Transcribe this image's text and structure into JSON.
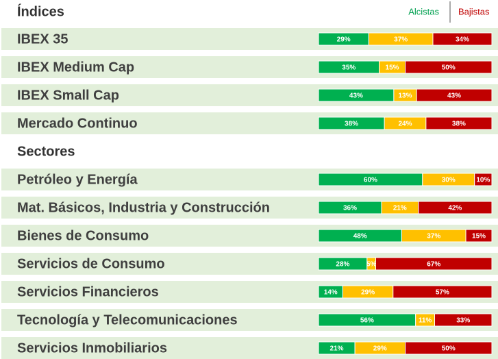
{
  "chart_data": [
    {
      "type": "bar",
      "title": "Índices",
      "categories": [
        "IBEX 35",
        "IBEX Medium Cap",
        "IBEX Small Cap",
        "Mercado Continuo"
      ],
      "series": [
        {
          "name": "Alcistas",
          "color": "#00b050",
          "values": [
            29,
            35,
            43,
            38
          ],
          "value_labels": [
            "29%",
            "35%",
            "43%",
            "38%"
          ]
        },
        {
          "color": "#ffc000",
          "values": [
            37,
            15,
            13,
            24
          ],
          "value_labels": [
            "37%",
            "15%",
            "13%",
            "24%"
          ]
        },
        {
          "name": "Bajistas",
          "color": "#c00000",
          "values": [
            34,
            50,
            43,
            38
          ],
          "value_labels": [
            "34%",
            "50%",
            "43%",
            "38%"
          ]
        }
      ]
    },
    {
      "type": "bar",
      "title": "Sectores",
      "categories": [
        "Petróleo y Energía",
        "Mat. Básicos, Industria y Construcción",
        "Bienes de Consumo",
        "Servicios de Consumo",
        "Servicios Financieros",
        "Tecnología y Telecomunicaciones",
        "Servicios Inmobiliarios"
      ],
      "series": [
        {
          "color": "#00b050",
          "values": [
            60,
            36,
            48,
            28,
            14,
            56,
            21
          ],
          "value_labels": [
            "60%",
            "36%",
            "48%",
            "28%",
            "14%",
            "56%",
            "21%"
          ]
        },
        {
          "color": "#ffc000",
          "values": [
            30,
            21,
            37,
            5,
            29,
            11,
            29
          ],
          "value_labels": [
            "30%",
            "21%",
            "37%",
            "5%",
            "29%",
            "11%",
            "29%"
          ]
        },
        {
          "color": "#c00000",
          "values": [
            10,
            42,
            15,
            67,
            57,
            33,
            50
          ],
          "value_labels": [
            "10%",
            "42%",
            "15%",
            "67%",
            "57%",
            "33%",
            "50%"
          ]
        }
      ]
    }
  ]
}
